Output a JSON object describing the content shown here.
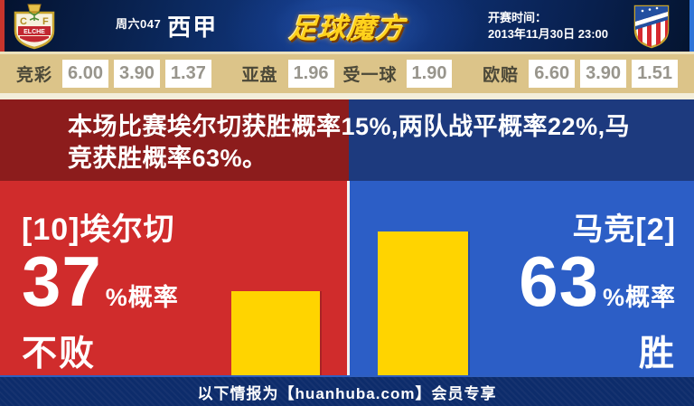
{
  "header": {
    "match_code": "周六047",
    "league": "西甲",
    "logo_text": "足球魔方",
    "kickoff_label": "开赛时间：",
    "kickoff_time": "2013年11月30日 23:00",
    "home_crest_icon": "elche-cf-crest",
    "away_crest_icon": "atletico-madrid-crest"
  },
  "odds": {
    "jingcai": {
      "label": "竞彩",
      "values": [
        "6.00",
        "3.90",
        "1.37"
      ]
    },
    "yapan": {
      "label": "亚盘",
      "home": "1.96",
      "handicap": "受一球",
      "away": "1.90"
    },
    "oupei": {
      "label": "欧赔",
      "values": [
        "6.60",
        "3.90",
        "1.51"
      ]
    }
  },
  "headline": {
    "text": "本场比赛埃尔切获胜概率15%,两队战平概率22%,马竞获胜概率63%。"
  },
  "panels": {
    "home": {
      "team": "[10]埃尔切",
      "probability": "37",
      "suffix": "%概率",
      "outcome": "不败"
    },
    "away": {
      "team": "马竞[2]",
      "probability": "63",
      "suffix": "%概率",
      "outcome": "胜"
    }
  },
  "footer": {
    "text": "以下情报为【huanhuba.com】会员专享"
  },
  "colors": {
    "home_red": "#d02c2c",
    "home_dark_red": "#8c1c1c",
    "away_blue": "#2c5ec6",
    "away_dark_blue": "#1d3a7e",
    "bar_yellow": "#ffd400",
    "odds_bg": "#dcc489",
    "footer_navy": "#0d2c6b"
  },
  "chart_data": {
    "type": "bar",
    "categories": [
      "[10]埃尔切 不败",
      "马竞[2] 胜"
    ],
    "values": [
      37,
      63
    ],
    "title": "本场比赛埃尔切获胜概率15%,两队战平概率22%,马竞获胜概率63%。",
    "probabilities": {
      "home_win_pct": 15,
      "draw_pct": 22,
      "away_win_pct": 63
    },
    "ylim": [
      0,
      100
    ],
    "bar_color": "#ffd400",
    "legend": "none",
    "grid": false
  }
}
